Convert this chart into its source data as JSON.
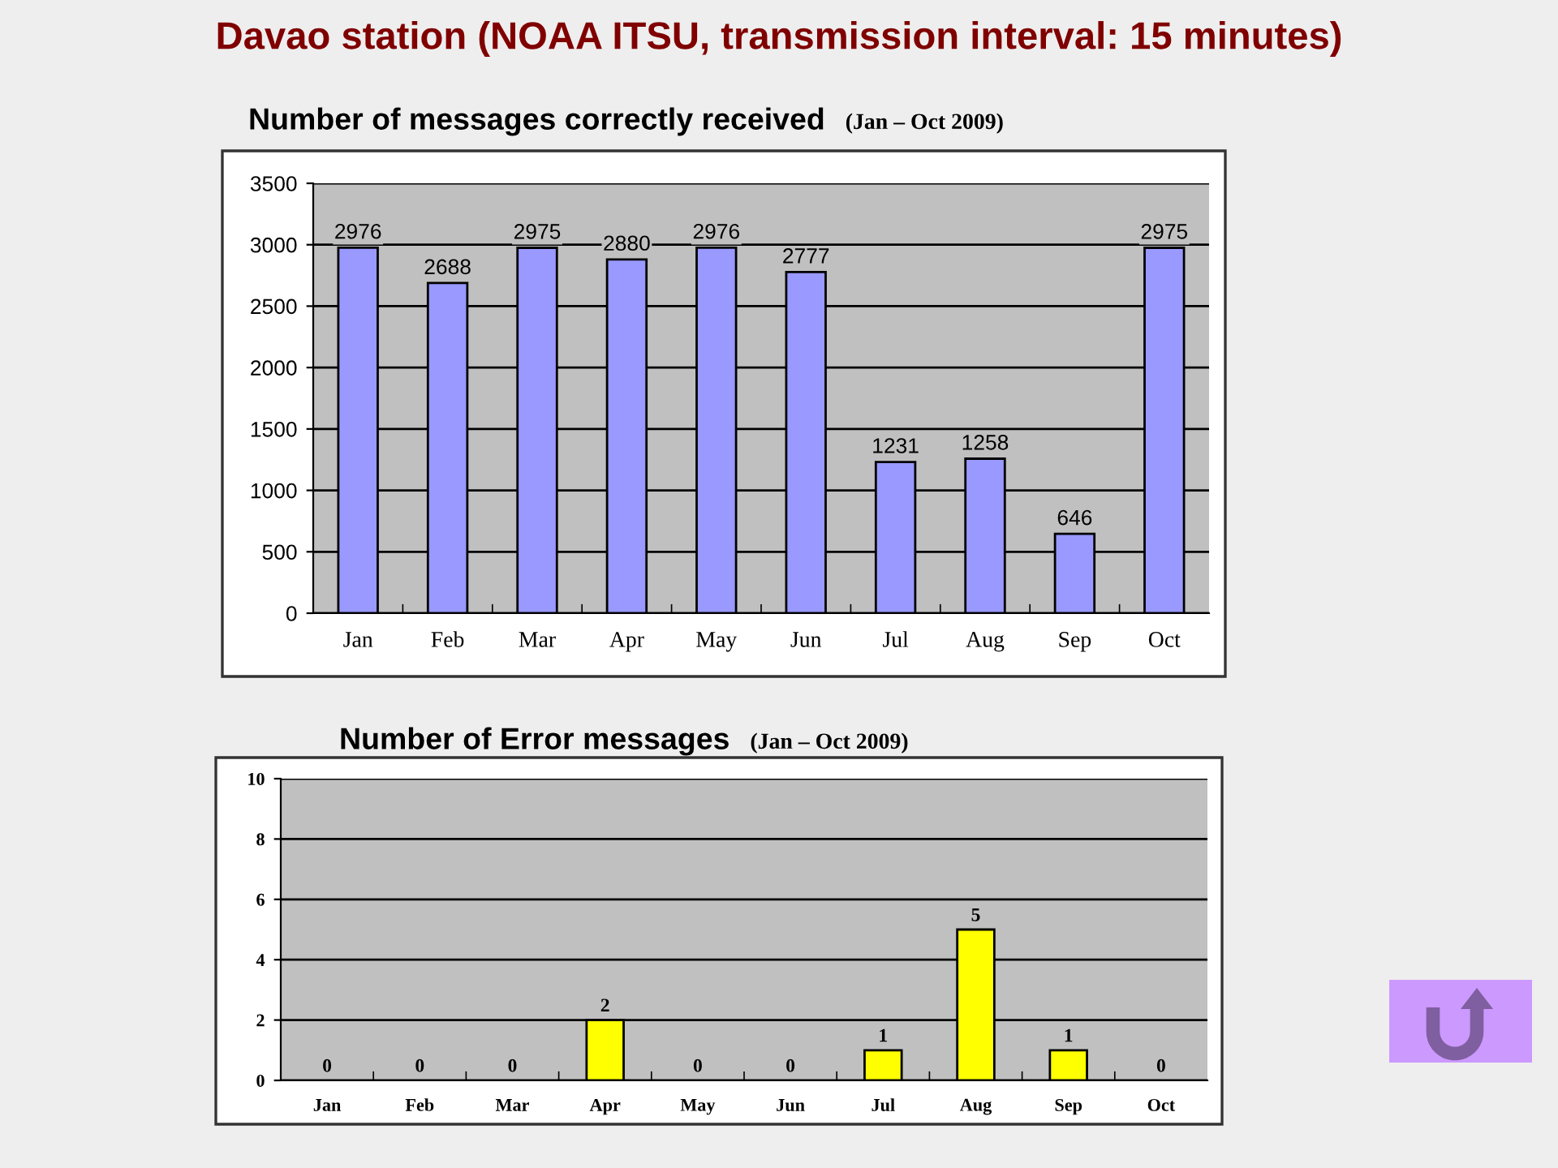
{
  "chart_data": [
    {
      "type": "other",
      "title": "Davao station (NOAA ITSU, transmission interval: 15 minutes)"
    },
    {
      "type": "bar",
      "title": "Number of messages correctly received",
      "subtitle": "(Jan – Oct 2009)",
      "categories": [
        "Jan",
        "Feb",
        "Mar",
        "Apr",
        "May",
        "Jun",
        "Jul",
        "Aug",
        "Sep",
        "Oct"
      ],
      "values": [
        2976,
        2688,
        2975,
        2880,
        2976,
        2777,
        1231,
        1258,
        646,
        2975
      ],
      "color": "#9999ff",
      "ylim": [
        0,
        3500
      ],
      "yticks": [
        0,
        500,
        1000,
        1500,
        2000,
        2500,
        3000,
        3500
      ],
      "grid": "y",
      "data_labels": true
    },
    {
      "type": "bar",
      "title": "Number of Error messages",
      "subtitle": "(Jan – Oct 2009)",
      "categories": [
        "Jan",
        "Feb",
        "Mar",
        "Apr",
        "May",
        "Jun",
        "Jul",
        "Aug",
        "Sep",
        "Oct"
      ],
      "values": [
        0,
        0,
        0,
        2,
        0,
        0,
        1,
        5,
        1,
        0
      ],
      "color": "#ffff00",
      "ylim": [
        0,
        10
      ],
      "yticks": [
        0,
        2,
        4,
        6,
        8,
        10
      ],
      "grid": "y",
      "data_labels": true
    }
  ]
}
